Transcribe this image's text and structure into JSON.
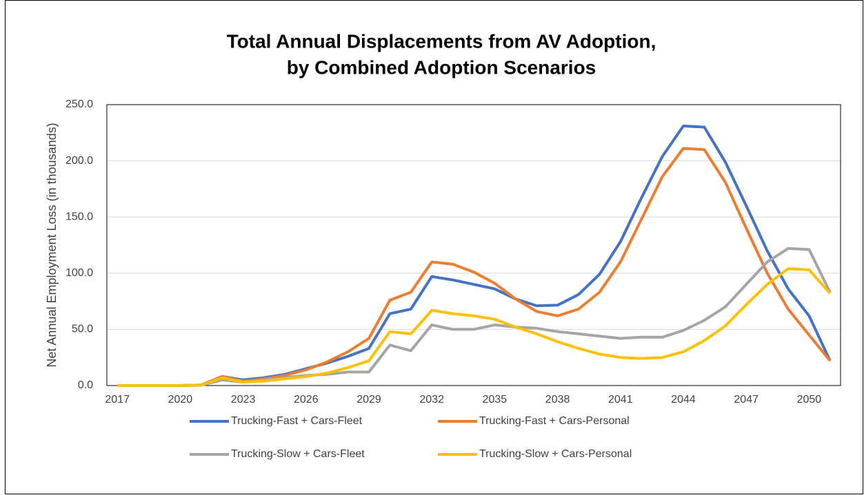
{
  "chart_data": {
    "type": "line",
    "title": [
      "Total Annual Displacements from AV Adoption,",
      "by Combined Adoption Scenarios"
    ],
    "y_label": "Net Annual Employment Loss (in thousands)",
    "categories": [
      "2017",
      null,
      null,
      "2020",
      null,
      null,
      "2023",
      null,
      null,
      "2026",
      null,
      null,
      "2029",
      null,
      null,
      "2032",
      null,
      null,
      "2035",
      null,
      null,
      "2038",
      null,
      null,
      "2041",
      null,
      null,
      "2044",
      null,
      null,
      "2047",
      null,
      null,
      "2050",
      null
    ],
    "ylim": [
      0,
      250
    ],
    "yticks": [
      {
        "value": 0,
        "label": "0.0"
      },
      {
        "value": 50,
        "label": "50.0"
      },
      {
        "value": 100,
        "label": "100.0"
      },
      {
        "value": 150,
        "label": "150.0"
      },
      {
        "value": 200,
        "label": "200.0"
      },
      {
        "value": 250,
        "label": "250.0"
      }
    ],
    "grid": true,
    "legend": "bottom",
    "series": [
      {
        "name": "Trucking-Fast + Cars-Fleet",
        "color": "#4472c4",
        "values": [
          0,
          0,
          0,
          0,
          0.5,
          8,
          5,
          7,
          10,
          15,
          20,
          26,
          33,
          64,
          68,
          97,
          94,
          90,
          86,
          77,
          71,
          71.5,
          81,
          99,
          128,
          167,
          204,
          231,
          230,
          199,
          160,
          120,
          86,
          62,
          22
        ]
      },
      {
        "name": "Trucking-Fast + Cars-Personal",
        "color": "#ed7d31",
        "values": [
          0,
          0,
          0,
          0,
          0.5,
          8,
          4,
          6,
          9,
          14,
          21,
          30,
          42,
          76,
          83,
          110,
          108,
          101,
          91,
          77,
          66,
          62,
          68,
          83,
          110,
          148,
          186,
          211,
          210,
          181,
          140,
          100,
          68,
          45,
          22
        ]
      },
      {
        "name": "Trucking-Slow + Cars-Fleet",
        "color": "#a5a5a5",
        "values": [
          0,
          0,
          0,
          0,
          0.3,
          5,
          3,
          5,
          7,
          9,
          10,
          12,
          12,
          36,
          31,
          54,
          50,
          50,
          54,
          52,
          51,
          48,
          46,
          44,
          42,
          43,
          43,
          49,
          58,
          70,
          90,
          110,
          122,
          121,
          83
        ]
      },
      {
        "name": "Trucking-Slow + Cars-Personal",
        "color": "#ffc000",
        "values": [
          0,
          0,
          0,
          0,
          0.3,
          7,
          3,
          4,
          6,
          8,
          11,
          16,
          22,
          48,
          46,
          67,
          64,
          62,
          59,
          52,
          46,
          39,
          33,
          28,
          25,
          24,
          25,
          30,
          40,
          53,
          72,
          90,
          104,
          103,
          82
        ]
      }
    ]
  }
}
